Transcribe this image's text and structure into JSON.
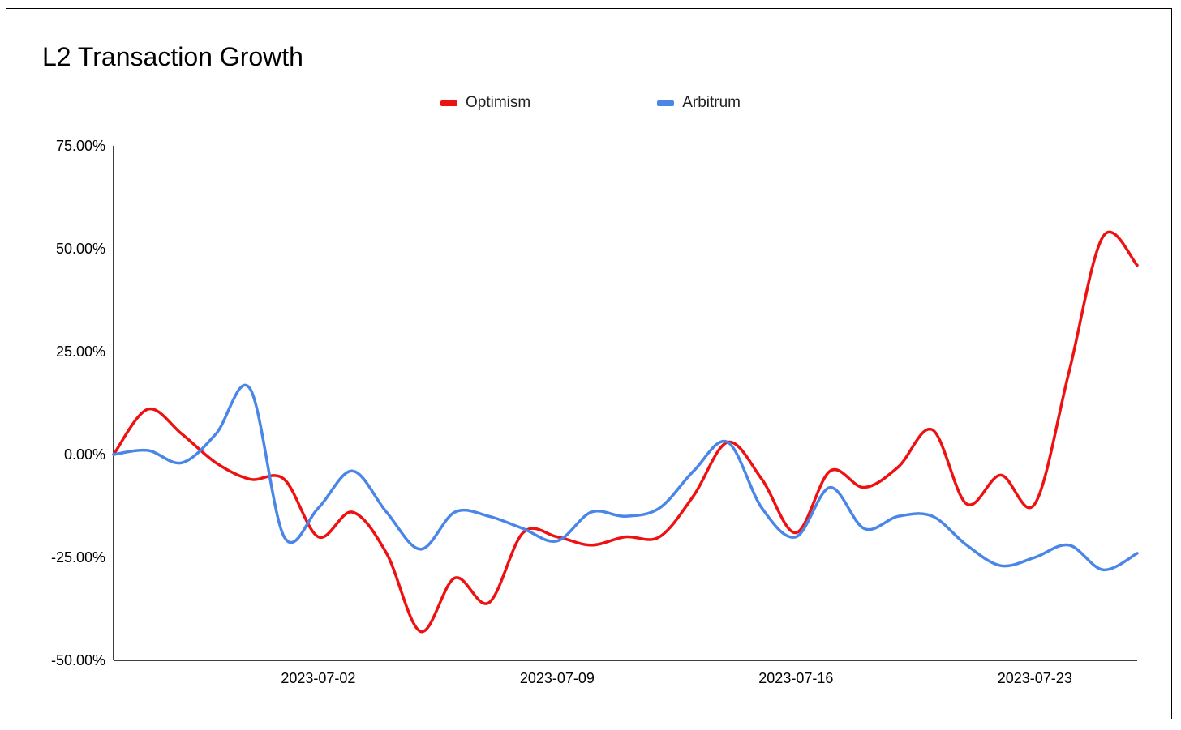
{
  "chart_data": {
    "type": "line",
    "title": "L2 Transaction Growth",
    "xlabel": "",
    "ylabel": "",
    "ylim": [
      -50,
      75
    ],
    "y_ticks": [
      "75.00%",
      "50.00%",
      "25.00%",
      "0.00%",
      "-25.00%",
      "-50.00%"
    ],
    "y_tick_values": [
      75,
      50,
      25,
      0,
      -25,
      -50
    ],
    "x_ticks": [
      "2023-07-02",
      "2023-07-09",
      "2023-07-16",
      "2023-07-23"
    ],
    "x_tick_indices": [
      6,
      13,
      20,
      27
    ],
    "legend_position": "top-center",
    "grid": false,
    "x": [
      "2023-06-26",
      "2023-06-27",
      "2023-06-28",
      "2023-06-29",
      "2023-06-30",
      "2023-07-01",
      "2023-07-02",
      "2023-07-03",
      "2023-07-04",
      "2023-07-05",
      "2023-07-06",
      "2023-07-07",
      "2023-07-08",
      "2023-07-09",
      "2023-07-10",
      "2023-07-11",
      "2023-07-12",
      "2023-07-13",
      "2023-07-14",
      "2023-07-15",
      "2023-07-16",
      "2023-07-17",
      "2023-07-18",
      "2023-07-19",
      "2023-07-20",
      "2023-07-21",
      "2023-07-22",
      "2023-07-23",
      "2023-07-24",
      "2023-07-25",
      "2023-07-26"
    ],
    "series": [
      {
        "name": "Optimism",
        "color": "#ee1111",
        "values": [
          0,
          11,
          5,
          -2,
          -6,
          -6,
          -20,
          -14,
          -24,
          -43,
          -30,
          -36,
          -19,
          -20,
          -22,
          -20,
          -20,
          -10,
          3,
          -6,
          -19,
          -4,
          -8,
          -3,
          6,
          -12,
          -5,
          -12,
          20,
          53,
          46
        ]
      },
      {
        "name": "Arbitrum",
        "color": "#4a86e8",
        "values": [
          0,
          1,
          -2,
          5,
          16,
          -20,
          -13,
          -4,
          -14,
          -23,
          -14,
          -15,
          -18,
          -21,
          -14,
          -15,
          -13,
          -4,
          3,
          -13,
          -20,
          -8,
          -18,
          -15,
          -15,
          -22,
          -27,
          -25,
          -22,
          -28,
          -24
        ]
      }
    ]
  }
}
